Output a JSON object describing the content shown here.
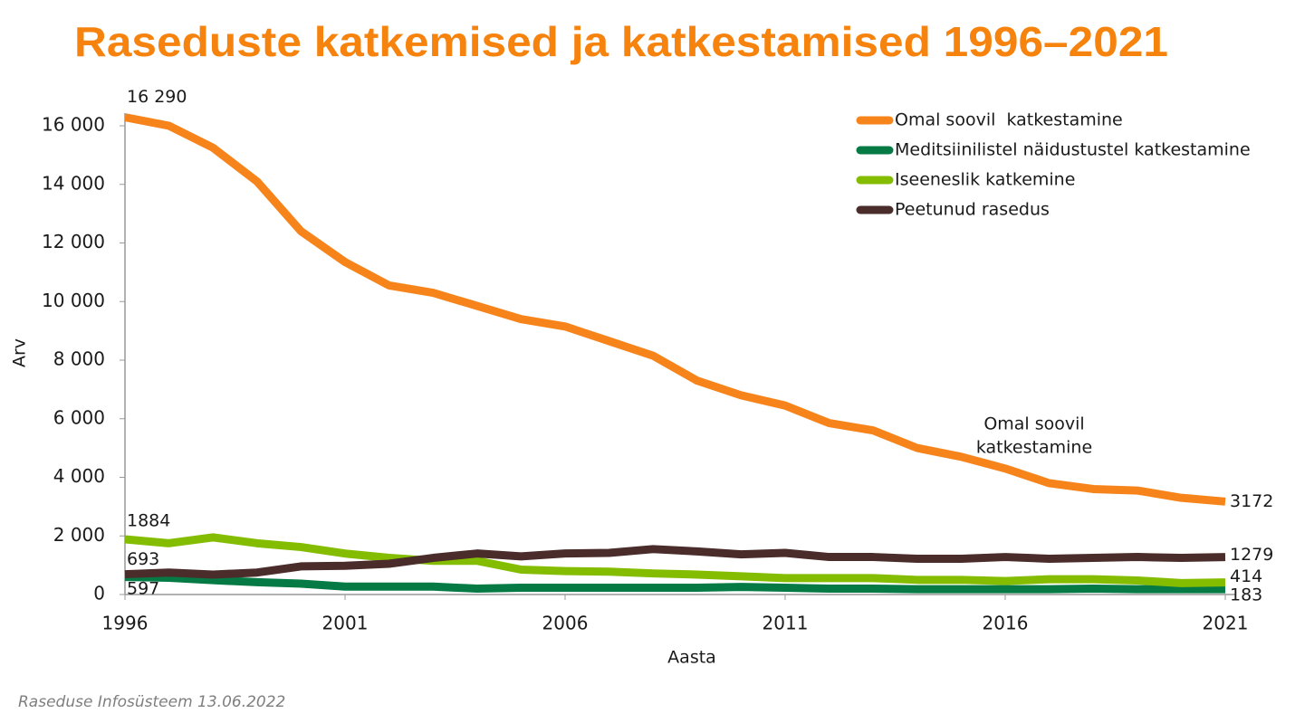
{
  "chart_data": {
    "type": "line",
    "title": "Raseduste katkemised ja katkestamised 1996–2021",
    "x_label": "Aasta",
    "y_label": "Arv",
    "source": "Raseduse Infosüsteem 13.06.2022",
    "x": [
      1996,
      1997,
      1998,
      1999,
      2000,
      2001,
      2002,
      2003,
      2004,
      2005,
      2006,
      2007,
      2008,
      2009,
      2010,
      2011,
      2012,
      2013,
      2014,
      2015,
      2016,
      2017,
      2018,
      2019,
      2020,
      2021
    ],
    "xlim": [
      1996,
      2021
    ],
    "xticks": [
      1996,
      2001,
      2006,
      2011,
      2016,
      2021
    ],
    "ylim": [
      0,
      16000
    ],
    "yticks": [
      0,
      {
        "value": 2000,
        "label": "2 000"
      },
      {
        "value": 4000,
        "label": "4 000"
      },
      {
        "value": 6000,
        "label": "6 000"
      },
      {
        "value": 8000,
        "label": "8 000"
      },
      {
        "value": 10000,
        "label": "10 000"
      },
      {
        "value": 12000,
        "label": "12 000"
      },
      {
        "value": 14000,
        "label": "14 000"
      },
      {
        "value": 16000,
        "label": "16 000"
      }
    ],
    "grid": false,
    "legend": "top-right",
    "series": [
      {
        "name": "Omal soovil  katkestamine",
        "color": "#f7841b",
        "values": [
          16290,
          16000,
          15250,
          14100,
          12400,
          11350,
          10550,
          10300,
          9850,
          9400,
          9150,
          8650,
          8150,
          7300,
          6800,
          6450,
          5850,
          5600,
          5000,
          4700,
          4300,
          3800,
          3600,
          3550,
          3300,
          3172
        ],
        "value_labels": [
          "16 290",
          null,
          null,
          null,
          null,
          null,
          null,
          null,
          null,
          null,
          null,
          null,
          null,
          null,
          null,
          null,
          null,
          null,
          null,
          null,
          null,
          null,
          null,
          null,
          null,
          "3172"
        ]
      },
      {
        "name": "Meditsiinilistel näidustustel katkestamine",
        "color": "#057a45",
        "values": [
          597,
          570,
          490,
          420,
          370,
          270,
          270,
          270,
          200,
          230,
          230,
          230,
          230,
          230,
          260,
          230,
          200,
          200,
          180,
          180,
          180,
          180,
          200,
          180,
          180,
          183
        ],
        "value_labels": [
          "597",
          null,
          null,
          null,
          null,
          null,
          null,
          null,
          null,
          null,
          null,
          null,
          null,
          null,
          null,
          null,
          null,
          null,
          null,
          null,
          null,
          null,
          null,
          null,
          null,
          "183"
        ]
      },
      {
        "name": "Iseeneslik katkemine",
        "color": "#84bd00",
        "values": [
          1884,
          1750,
          1950,
          1750,
          1620,
          1400,
          1250,
          1150,
          1150,
          850,
          800,
          780,
          720,
          680,
          620,
          560,
          560,
          560,
          500,
          500,
          460,
          520,
          520,
          480,
          390,
          414
        ],
        "value_labels": [
          "1884",
          null,
          null,
          null,
          null,
          null,
          null,
          null,
          null,
          null,
          null,
          null,
          null,
          null,
          null,
          null,
          null,
          null,
          null,
          null,
          null,
          null,
          null,
          null,
          null,
          "414"
        ]
      },
      {
        "name": "Peetunud rasedus",
        "color": "#4a2c2a",
        "values": [
          693,
          750,
          680,
          750,
          960,
          980,
          1050,
          1250,
          1400,
          1300,
          1400,
          1420,
          1550,
          1470,
          1370,
          1420,
          1280,
          1280,
          1220,
          1220,
          1280,
          1220,
          1250,
          1280,
          1250,
          1279
        ],
        "value_labels": [
          "693",
          null,
          null,
          null,
          null,
          null,
          null,
          null,
          null,
          null,
          null,
          null,
          null,
          null,
          null,
          null,
          null,
          null,
          null,
          null,
          null,
          null,
          null,
          null,
          null,
          "1279"
        ]
      }
    ],
    "annotation": {
      "lines": [
        "Omal soovil",
        "katkestamine"
      ]
    }
  }
}
